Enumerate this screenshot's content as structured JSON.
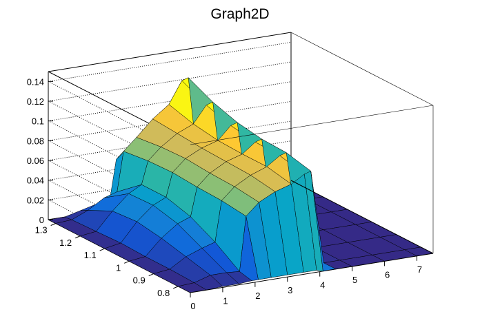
{
  "chart_data": {
    "type": "surface",
    "title": "Graph2D",
    "x_axis": {
      "label": "",
      "range": [
        0,
        7.5
      ],
      "ticks": [
        "0",
        "1",
        "2",
        "3",
        "4",
        "5",
        "6",
        "7"
      ]
    },
    "y_axis": {
      "label": "",
      "range": [
        0.75,
        1.33
      ],
      "ticks": [
        "0.8",
        "0.9",
        "1",
        "1.1",
        "1.2",
        "1.3"
      ]
    },
    "z_axis": {
      "label": "",
      "range": [
        0,
        0.15
      ],
      "ticks": [
        "0",
        "0.02",
        "0.04",
        "0.06",
        "0.08",
        "0.1",
        "0.12",
        "0.14"
      ]
    },
    "grid": "dotted",
    "palette": [
      "#352a87",
      "#0f5cdd",
      "#1481d6",
      "#06a4ca",
      "#2eb7a4",
      "#87bf77",
      "#d1bb59",
      "#fec832",
      "#f9fb0e"
    ],
    "x_grid": [
      0,
      0.5,
      1,
      1.5,
      1.9,
      2.1,
      2.5,
      3,
      3.5,
      3.9,
      4.1,
      4.5,
      5,
      6,
      7,
      7.5
    ],
    "y_grid": [
      0.75,
      0.8,
      0.9,
      1.0,
      1.1,
      1.2,
      1.3,
      1.33
    ],
    "z_values": [
      [
        0.0,
        0.0,
        0.001,
        0.001,
        0.002,
        0.002,
        0.002,
        0.002,
        0.002,
        0.002,
        0.0,
        0.0,
        0.0,
        0.0,
        0.0,
        0.0
      ],
      [
        0.0,
        0.001,
        0.006,
        0.006,
        0.005,
        0.06,
        0.072,
        0.08,
        0.085,
        0.093,
        0.095,
        0.0,
        0.0,
        0.0,
        0.0,
        0.0
      ],
      [
        0.0,
        0.002,
        0.012,
        0.018,
        0.022,
        0.063,
        0.075,
        0.084,
        0.09,
        0.099,
        0.101,
        0.005,
        0.0,
        0.0,
        0.0,
        0.0
      ],
      [
        0.0,
        0.002,
        0.018,
        0.03,
        0.035,
        0.064,
        0.076,
        0.085,
        0.09,
        0.1,
        0.102,
        0.006,
        0.0,
        0.0,
        0.0,
        0.0
      ],
      [
        0.0,
        0.003,
        0.022,
        0.036,
        0.042,
        0.066,
        0.078,
        0.086,
        0.091,
        0.104,
        0.106,
        0.007,
        0.0,
        0.0,
        0.0,
        0.0
      ],
      [
        0.0,
        0.002,
        0.02,
        0.035,
        0.042,
        0.065,
        0.077,
        0.088,
        0.095,
        0.112,
        0.114,
        0.006,
        0.0,
        0.0,
        0.0,
        0.0
      ],
      [
        0.0,
        0.001,
        0.008,
        0.018,
        0.022,
        0.062,
        0.074,
        0.09,
        0.102,
        0.124,
        0.126,
        0.004,
        0.0,
        0.0,
        0.0,
        0.0
      ],
      [
        0.0,
        0.0,
        0.004,
        0.008,
        0.01,
        0.05,
        0.06,
        0.075,
        0.085,
        0.105,
        0.107,
        0.002,
        0.0,
        0.0,
        0.0,
        0.0
      ]
    ]
  }
}
